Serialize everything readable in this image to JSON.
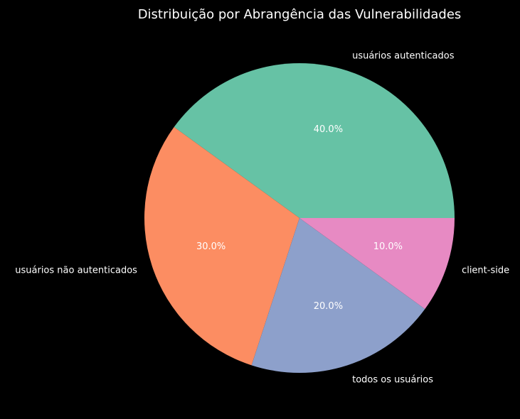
{
  "chart_data": {
    "type": "pie",
    "title": "Distribuição por Abrangência das Vulnerabilidades",
    "start_angle_deg": 0,
    "direction": "counterclockwise",
    "slices": [
      {
        "label": "usuários autenticados",
        "value": 40,
        "pct_label": "40.0%",
        "color": "#66c2a5"
      },
      {
        "label": "usuários não autenticados",
        "value": 30,
        "pct_label": "30.0%",
        "color": "#fc8d62"
      },
      {
        "label": "todos os usuários",
        "value": 20,
        "pct_label": "20.0%",
        "color": "#8da0cb"
      },
      {
        "label": "client-side",
        "value": 10,
        "pct_label": "10.0%",
        "color": "#e78ac3"
      }
    ],
    "background": "#000000",
    "text_color": "#ffffff"
  }
}
